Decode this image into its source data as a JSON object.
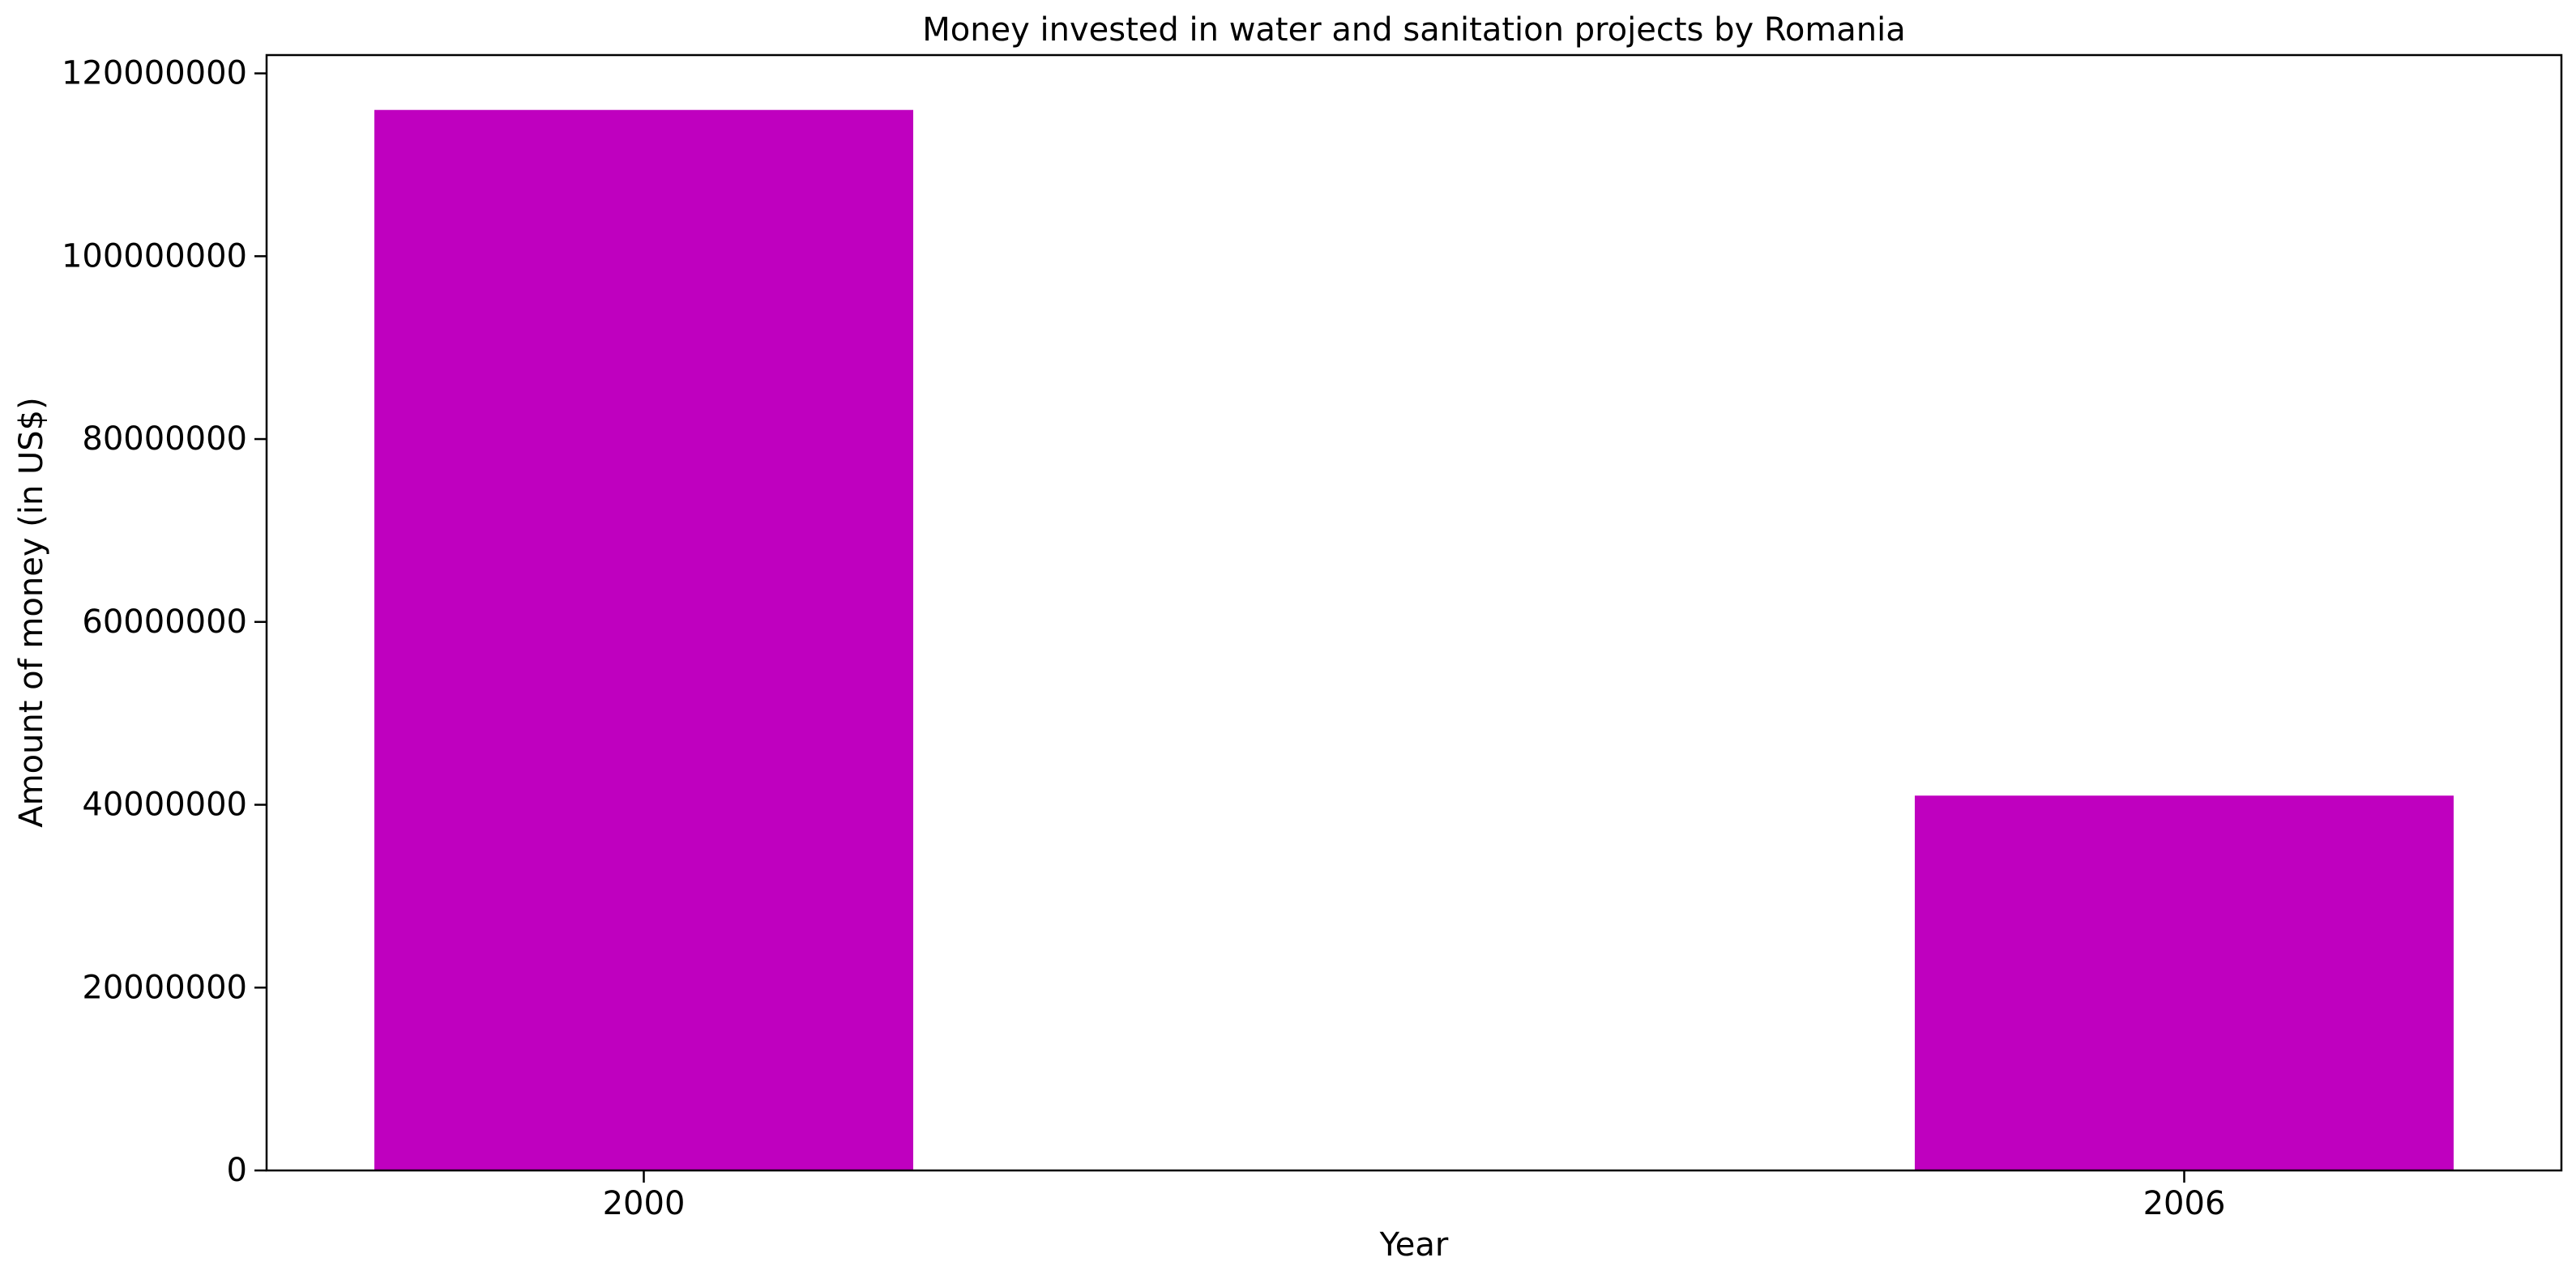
{
  "chart_data": {
    "type": "bar",
    "title": "Money invested in water and sanitation projects by Romania",
    "xlabel": "Year",
    "ylabel": "Amount of money (in US$)",
    "categories": [
      "2000",
      "2006"
    ],
    "values": [
      116000000,
      41000000
    ],
    "ylim": [
      0,
      122000000
    ],
    "yticks": [
      0,
      20000000,
      40000000,
      60000000,
      80000000,
      100000000,
      120000000
    ],
    "ytick_labels": [
      "0",
      "20000000",
      "40000000",
      "60000000",
      "80000000",
      "100000000",
      "120000000"
    ],
    "bar_color": "#bf00bf",
    "grid": false,
    "legend": "none"
  }
}
